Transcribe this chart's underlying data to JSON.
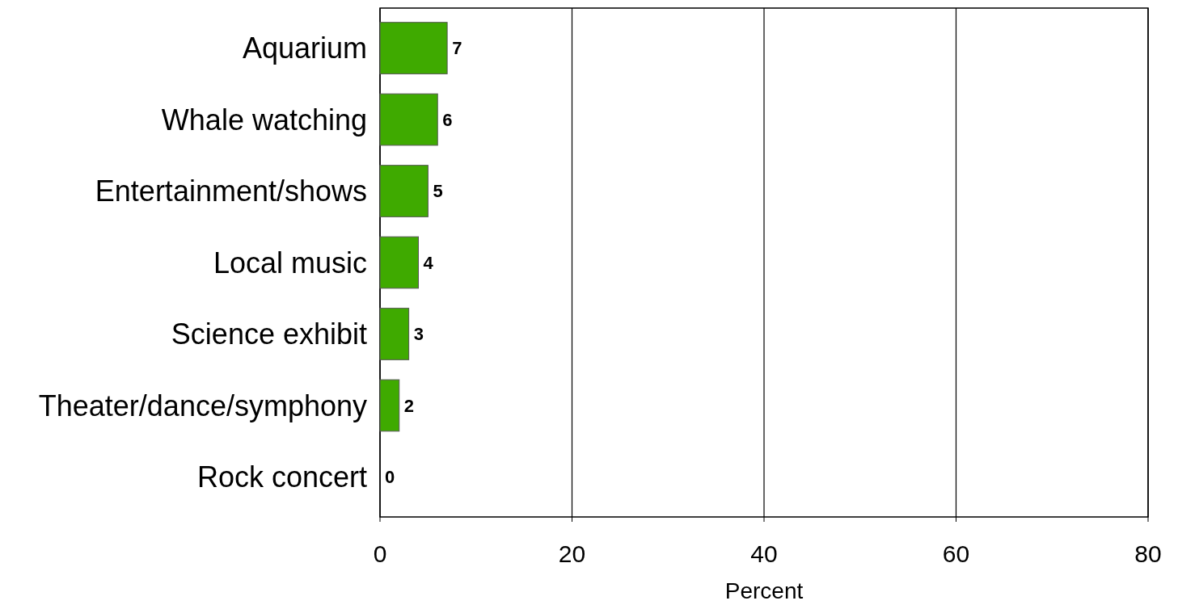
{
  "chart_data": {
    "type": "bar",
    "orientation": "horizontal",
    "xlabel": "Percent",
    "categories": [
      "Aquarium",
      "Whale watching",
      "Entertainment/shows",
      "Local music",
      "Science exhibit",
      "Theater/dance/symphony",
      "Rock concert"
    ],
    "values": [
      7,
      6,
      5,
      4,
      3,
      2,
      0
    ],
    "color": "#3faa00",
    "xlim": [
      0,
      80
    ],
    "xticks": [
      0,
      20,
      40,
      60,
      80
    ],
    "grid": "x",
    "data_labels": true
  }
}
